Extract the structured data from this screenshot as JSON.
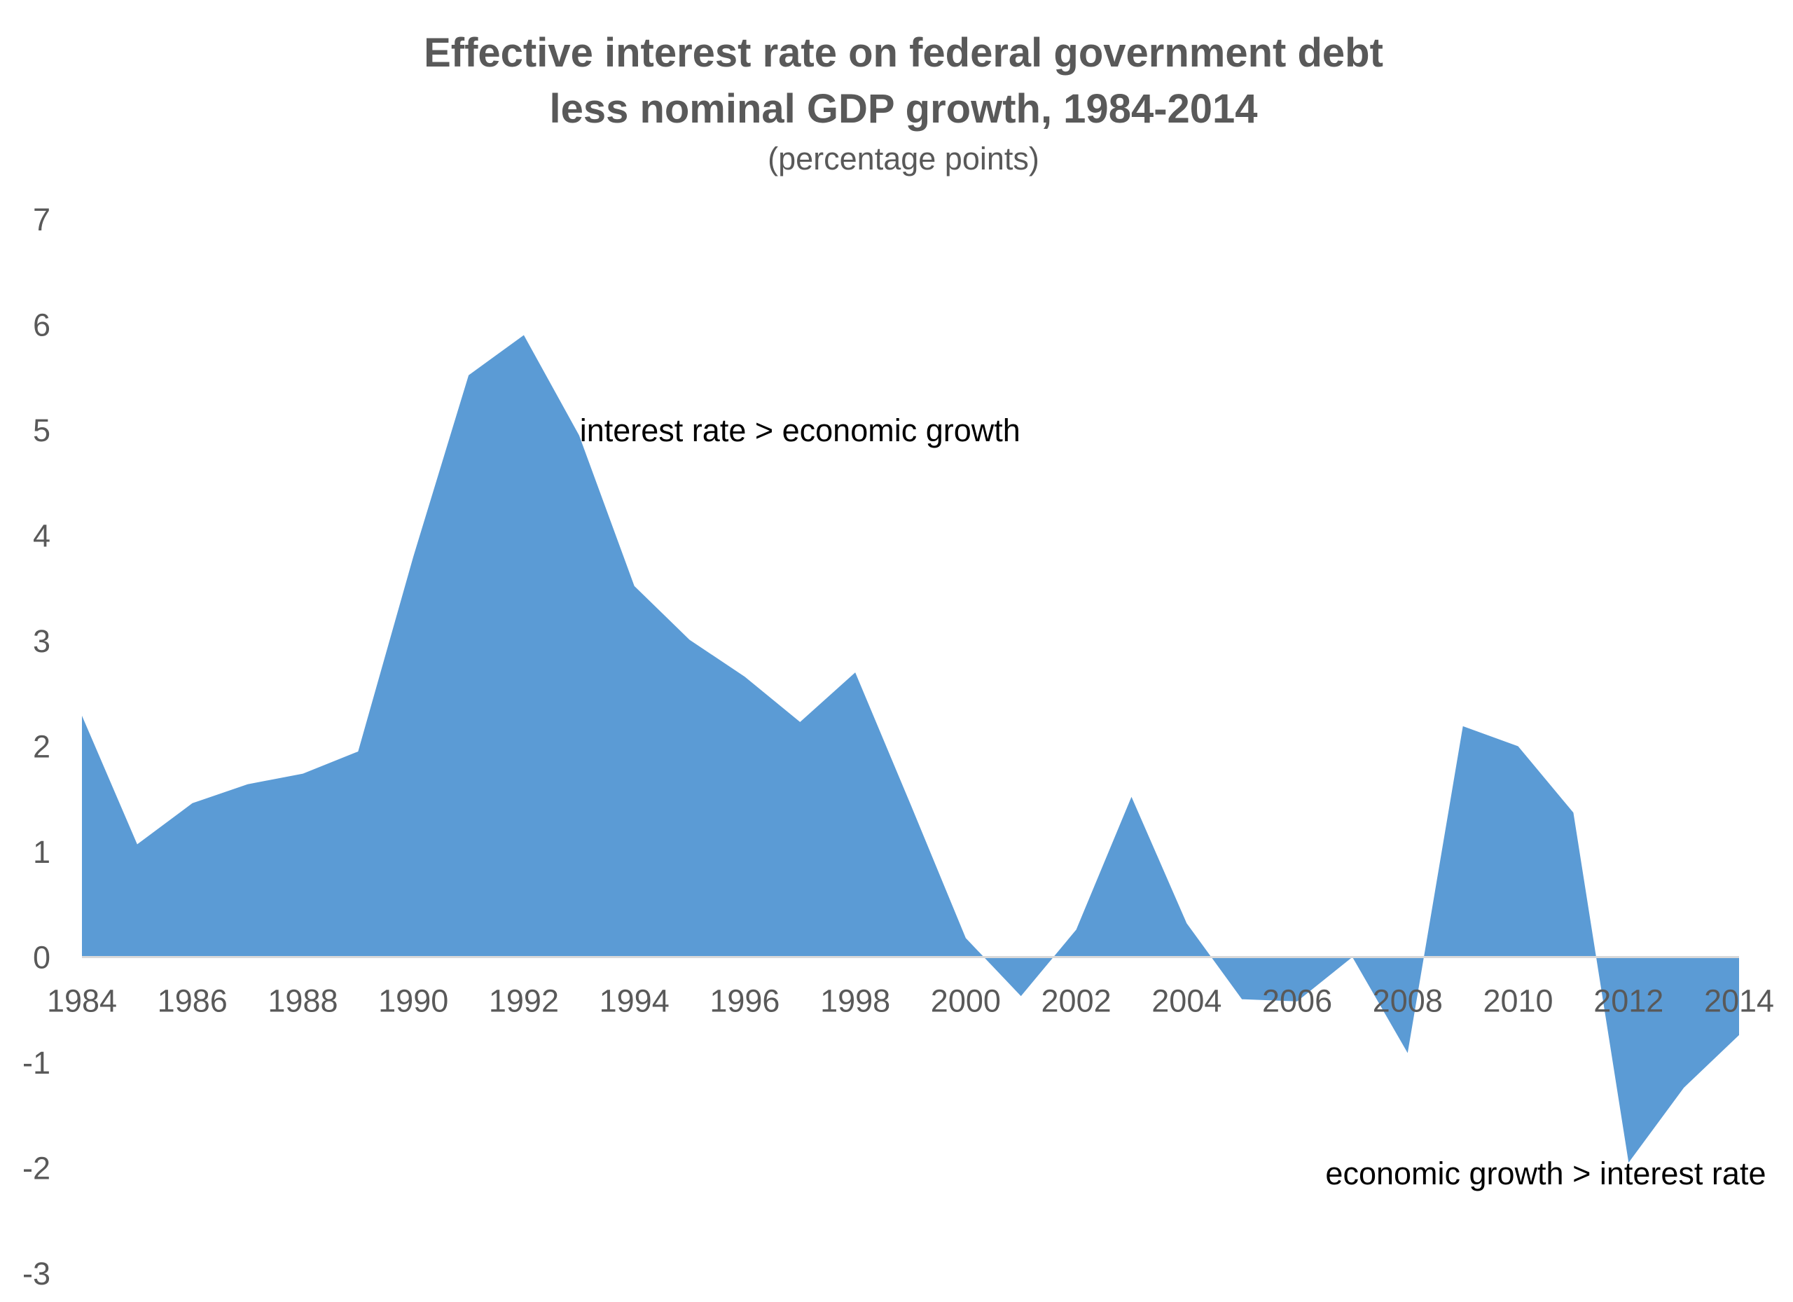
{
  "chart_data": {
    "type": "area",
    "title_lines": [
      "Effective interest rate on federal government debt",
      "less nominal GDP growth, 1984-2014"
    ],
    "subtitle": "(percentage points)",
    "xlabel": "",
    "ylabel": "",
    "x": [
      1984,
      1985,
      1986,
      1987,
      1988,
      1989,
      1990,
      1991,
      1992,
      1993,
      1994,
      1995,
      1996,
      1997,
      1998,
      1999,
      2000,
      2001,
      2002,
      2003,
      2004,
      2005,
      2006,
      2007,
      2008,
      2009,
      2010,
      2011,
      2012,
      2013,
      2014
    ],
    "values": [
      2.29,
      1.07,
      1.46,
      1.64,
      1.74,
      1.95,
      3.8,
      5.52,
      5.9,
      4.95,
      3.52,
      3.01,
      2.66,
      2.23,
      2.7,
      1.45,
      0.18,
      -0.37,
      0.26,
      1.52,
      0.32,
      -0.4,
      -0.42,
      0.0,
      -0.91,
      2.19,
      2.0,
      1.37,
      -1.95,
      -1.24,
      -0.74
    ],
    "ylim": [
      -3,
      7
    ],
    "yticks": [
      "7",
      "6",
      "5",
      "4",
      "3",
      "2",
      "1",
      "0",
      "-1",
      "-2",
      "-3"
    ],
    "xticks": [
      "1984",
      "1986",
      "1988",
      "1990",
      "1992",
      "1994",
      "1996",
      "1998",
      "2000",
      "2002",
      "2004",
      "2006",
      "2008",
      "2010",
      "2012",
      "2014"
    ],
    "grid": false,
    "legend": "none",
    "fill_color": "#5b9bd5",
    "zero_line_color": "#d9d9d9",
    "annotations": [
      {
        "text": "interest rate > economic growth",
        "x": 1997,
        "y": 5.0
      },
      {
        "text": "economic growth > interest rate",
        "x": 2010.5,
        "y": -2.05
      }
    ]
  }
}
